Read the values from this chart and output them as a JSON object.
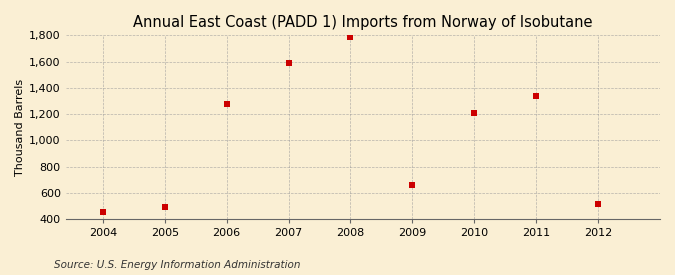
{
  "title": "Annual East Coast (PADD 1) Imports from Norway of Isobutane",
  "ylabel": "Thousand Barrels",
  "source": "Source: U.S. Energy Information Administration",
  "years": [
    2004,
    2005,
    2006,
    2007,
    2008,
    2009,
    2010,
    2011,
    2012
  ],
  "values": [
    450,
    490,
    1275,
    1590,
    1790,
    660,
    1205,
    1335,
    515
  ],
  "ylim": [
    400,
    1800
  ],
  "yticks": [
    400,
    600,
    800,
    1000,
    1200,
    1400,
    1600,
    1800
  ],
  "marker_color": "#cc0000",
  "marker": "s",
  "marker_size": 4,
  "bg_color": "#faefd4",
  "plot_bg_color": "#faefd4",
  "grid_color": "#999999",
  "title_fontsize": 10.5,
  "label_fontsize": 8,
  "tick_fontsize": 8,
  "source_fontsize": 7.5,
  "xlim_left": 2003.4,
  "xlim_right": 2013.0
}
